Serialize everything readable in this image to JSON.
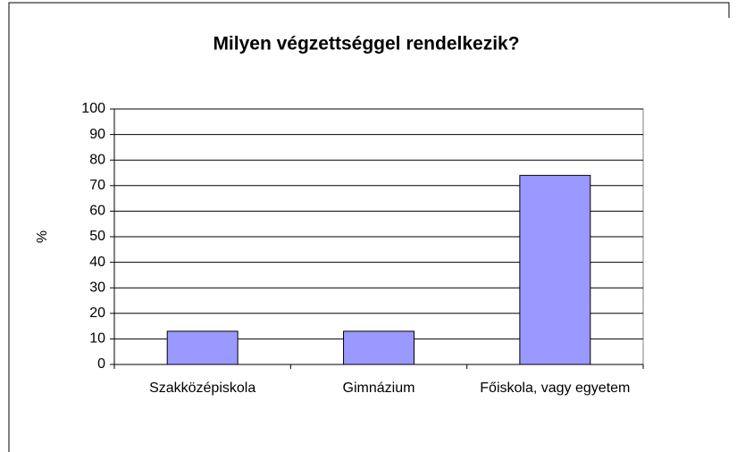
{
  "chart_data": {
    "type": "bar",
    "title": "Milyen végzettséggel rendelkezik?",
    "y_label": "%",
    "categories": [
      "Szakközépiskola",
      "Gimnázium",
      "Főiskola, vagy egyetem"
    ],
    "values": [
      13,
      13,
      74
    ],
    "color": "#9999ff",
    "ylim": [
      0,
      100
    ],
    "yticks": [
      0,
      10,
      20,
      30,
      40,
      50,
      60,
      70,
      80,
      90,
      100
    ],
    "grid": true
  }
}
